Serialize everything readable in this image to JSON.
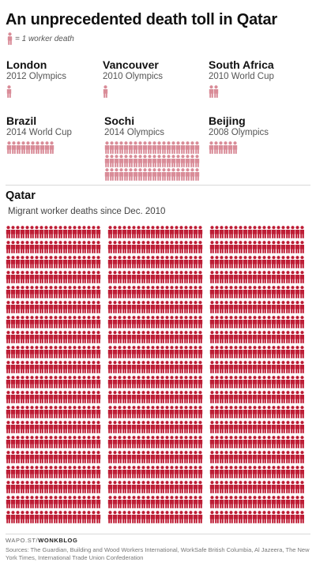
{
  "title": "An unprecedented death toll in Qatar",
  "legend": {
    "label": "= 1 worker death"
  },
  "credit": {
    "site": "WAPO.ST/",
    "blog": "WONKBLOG"
  },
  "sources": "Sources: The Guardian, Building and Wood Workers International, WorkSafe British Columbia, Al Jazeera, The New York Times, International Trade Union Confederation",
  "colors": {
    "events": "#d98c98",
    "qatar": "#be1e36",
    "text": "#1f1f1f",
    "muted": "#555555"
  },
  "icon": "person-icon",
  "chart_data": {
    "type": "pictogram",
    "unit": "1 worker death",
    "events": [
      {
        "name": "London",
        "event": "2012 Olympics",
        "deaths": 1
      },
      {
        "name": "Vancouver",
        "event": "2010 Olympics",
        "deaths": 1
      },
      {
        "name": "South Africa",
        "event": "2010 World Cup",
        "deaths": 2
      },
      {
        "name": "Brazil",
        "event": "2014 World Cup",
        "deaths": 10
      },
      {
        "name": "Sochi",
        "event": "2014 Olympics",
        "deaths": 60
      },
      {
        "name": "Beijing",
        "event": "2008 Olympics",
        "deaths": 6
      }
    ],
    "qatar": {
      "name": "Qatar",
      "label": "Migrant worker deaths since Dec. 2010",
      "deaths": 1200
    }
  }
}
